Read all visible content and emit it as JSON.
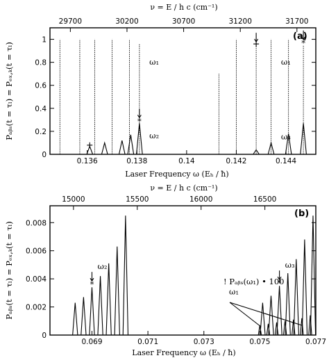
{
  "chart_data": [
    {
      "panel_label": "(a)",
      "type": "line",
      "xlabel": "Laser Frequency ω (Eₕ / ħ)",
      "ylabel": "Pₐᵦₛ(t = τₗ) = Pₑₓ,ₖ(t = τₗ)",
      "xlim": [
        0.1345,
        0.1452
      ],
      "ylim": [
        0,
        1.1
      ],
      "xticks": [
        "0.136",
        "0.138",
        "0.14",
        "0.142",
        "0.144"
      ],
      "xtick_values": [
        0.136,
        0.138,
        0.14,
        0.142,
        0.144
      ],
      "yticks": [
        "0",
        "0.2",
        "0.4",
        "0.6",
        "0.8",
        "1"
      ],
      "ytick_values": [
        0,
        0.2,
        0.4,
        0.6,
        0.8,
        1
      ],
      "top_axis": {
        "label": "ν = E / h c   (cm⁻¹)",
        "ticks": [
          "29700",
          "30200",
          "30700",
          "31200",
          "31700"
        ],
        "tick_positions_omega": [
          0.13532,
          0.1376,
          0.13988,
          0.14216,
          0.14444
        ]
      },
      "series": [
        {
          "style": "dotted",
          "peaks": [
            {
              "x": 0.1349,
              "y": 1.0
            },
            {
              "x": 0.1357,
              "y": 1.0
            },
            {
              "x": 0.1363,
              "y": 1.0
            },
            {
              "x": 0.137,
              "y": 1.0
            },
            {
              "x": 0.1377,
              "y": 1.0
            },
            {
              "x": 0.1381,
              "y": 0.96
            },
            {
              "x": 0.1413,
              "y": 0.7
            },
            {
              "x": 0.142,
              "y": 1.0
            },
            {
              "x": 0.1428,
              "y": 0.94
            },
            {
              "x": 0.1434,
              "y": 1.0
            },
            {
              "x": 0.1441,
              "y": 1.0
            },
            {
              "x": 0.1447,
              "y": 0.95
            }
          ]
        },
        {
          "style": "solid",
          "peaks": [
            {
              "x": 0.1361,
              "y": 0.07
            },
            {
              "x": 0.1367,
              "y": 0.1
            },
            {
              "x": 0.1374,
              "y": 0.12
            },
            {
              "x": 0.13775,
              "y": 0.17
            },
            {
              "x": 0.1381,
              "y": 0.27
            },
            {
              "x": 0.1428,
              "y": 0.04
            },
            {
              "x": 0.1434,
              "y": 0.1
            },
            {
              "x": 0.1441,
              "y": 0.18
            },
            {
              "x": 0.1447,
              "y": 0.27
            }
          ]
        }
      ],
      "annotations": [
        {
          "text": "ω₁",
          "x": 0.1385,
          "y": 0.78
        },
        {
          "text": "ω₂",
          "x": 0.1385,
          "y": 0.14
        },
        {
          "text": "ω₁",
          "x": 0.1438,
          "y": 0.78
        },
        {
          "text": "ω₃",
          "x": 0.1438,
          "y": 0.13
        }
      ],
      "markers": [
        {
          "type": "star-arrow",
          "x": 0.1381,
          "y": 0.3
        },
        {
          "type": "plus",
          "x": 0.1361,
          "y": 0.08
        },
        {
          "type": "plus-arrow",
          "x": 0.1428,
          "y": 0.96
        },
        {
          "type": "star-arrow",
          "x": 0.1447,
          "y": 0.98
        }
      ]
    },
    {
      "panel_label": "(b)",
      "type": "line",
      "xlabel": "Laser Frequency ω (Eₕ / ħ)",
      "ylabel": "Pₐᵦₛ(t = τₗ) = Pₑₓ,ₖ(t = τₗ)",
      "xlim": [
        0.0675,
        0.077
      ],
      "ylim": [
        0,
        0.0092
      ],
      "xticks": [
        "0.069",
        "0.071",
        "0.073",
        "0.075",
        "0.077"
      ],
      "xtick_values": [
        0.069,
        0.071,
        0.073,
        0.075,
        0.077
      ],
      "yticks": [
        "0",
        "0.002",
        "0.004",
        "0.006",
        "0.008"
      ],
      "ytick_values": [
        0,
        0.002,
        0.004,
        0.006,
        0.008
      ],
      "top_axis": {
        "label": "ν = E / h c   (cm⁻¹)",
        "ticks": [
          "15000",
          "15500",
          "16000",
          "16500"
        ],
        "tick_positions_omega": [
          0.06834,
          0.07062,
          0.0729,
          0.07518
        ]
      },
      "series": [
        {
          "style": "solid",
          "peaks": [
            {
              "x": 0.0684,
              "y": 0.0023
            },
            {
              "x": 0.0687,
              "y": 0.0027
            },
            {
              "x": 0.069,
              "y": 0.0034
            },
            {
              "x": 0.0693,
              "y": 0.0042
            },
            {
              "x": 0.0696,
              "y": 0.0051
            },
            {
              "x": 0.0699,
              "y": 0.0063
            },
            {
              "x": 0.0702,
              "y": 0.0085
            },
            {
              "x": 0.0751,
              "y": 0.0023
            },
            {
              "x": 0.0754,
              "y": 0.0028
            },
            {
              "x": 0.0757,
              "y": 0.0035
            },
            {
              "x": 0.076,
              "y": 0.0044
            },
            {
              "x": 0.0763,
              "y": 0.0054
            },
            {
              "x": 0.0766,
              "y": 0.0068
            },
            {
              "x": 0.0769,
              "y": 0.0085
            }
          ]
        },
        {
          "style": "small",
          "peaks": [
            {
              "x": 0.075,
              "y": 0.0007
            },
            {
              "x": 0.0753,
              "y": 0.0008
            },
            {
              "x": 0.0756,
              "y": 0.0009
            },
            {
              "x": 0.0759,
              "y": 0.001
            },
            {
              "x": 0.0762,
              "y": 0.0011
            },
            {
              "x": 0.0765,
              "y": 0.0012
            },
            {
              "x": 0.0768,
              "y": 0.0014
            }
          ]
        }
      ],
      "annotations": [
        {
          "text": "ω₂",
          "x": 0.0692,
          "y": 0.0047
        },
        {
          "text": "ω₃",
          "x": 0.0759,
          "y": 0.0048
        },
        {
          "text": "! Pₐᵦₛ(ω₁) • 100",
          "x": 0.0737,
          "y": 0.0036
        },
        {
          "text": "ω₁",
          "x": 0.0739,
          "y": 0.0029
        }
      ],
      "markers": [
        {
          "type": "star-arrow",
          "x": 0.069,
          "y": 0.0037
        },
        {
          "type": "star-arrow",
          "x": 0.0757,
          "y": 0.0038
        }
      ]
    }
  ]
}
